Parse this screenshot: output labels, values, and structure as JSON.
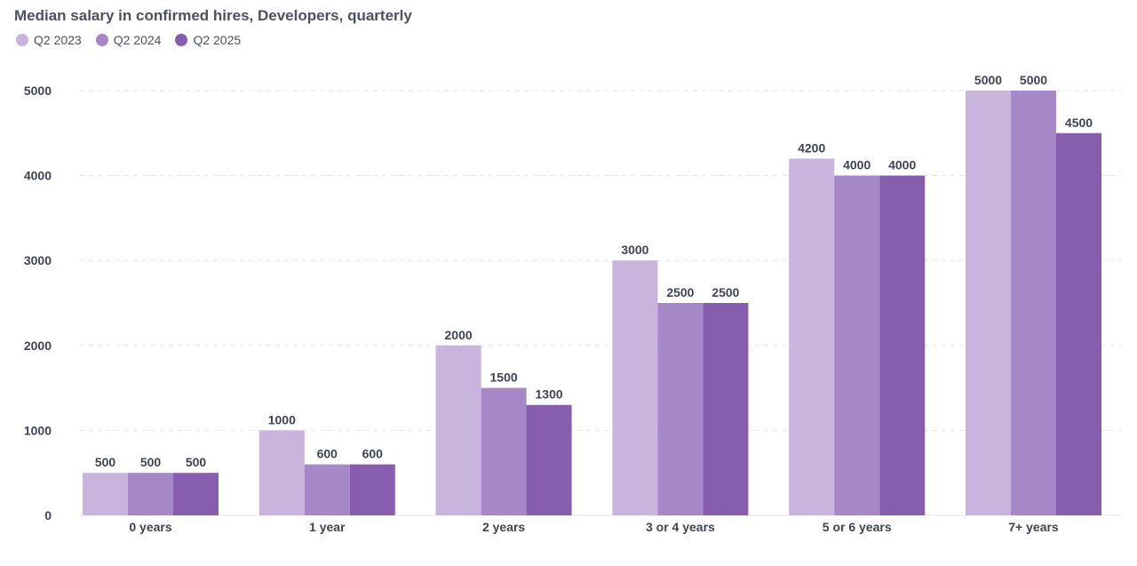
{
  "chart_data": {
    "type": "bar",
    "title": "Median salary in confirmed hires, Developers, quarterly",
    "categories": [
      "0 years",
      "1 year",
      "2 years",
      "3 or 4 years",
      "5 or 6 years",
      "7+ years"
    ],
    "series": [
      {
        "name": "Q2 2023",
        "color": "#c8b4dc",
        "values": [
          500,
          1000,
          2000,
          3000,
          4200,
          5000
        ]
      },
      {
        "name": "Q2 2024",
        "color": "#a687c7",
        "values": [
          500,
          600,
          1500,
          2500,
          4000,
          5000
        ]
      },
      {
        "name": "Q2 2025",
        "color": "#875db0",
        "values": [
          500,
          600,
          1300,
          2500,
          4000,
          4500
        ]
      }
    ],
    "ylim": [
      0,
      5000
    ],
    "yticks": [
      0,
      1000,
      2000,
      3000,
      4000,
      5000
    ],
    "grid": true,
    "legend_position": "top-left"
  }
}
